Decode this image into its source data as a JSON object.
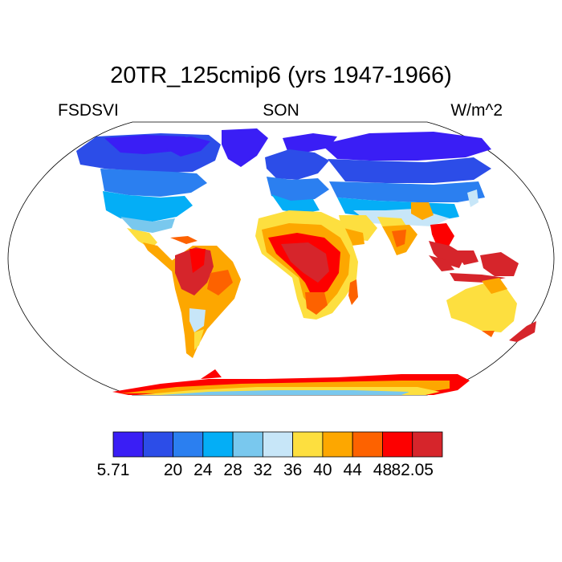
{
  "title": "20TR_125cmip6 (yrs 1947-1966)",
  "left_label": "FSDSVI",
  "center_label": "SON",
  "right_label": "W/m^2",
  "map": {
    "projection": "robinson",
    "background": "#ffffff",
    "land_colors": {
      "arctic": "#3a1ef5",
      "high": "#2c4de8",
      "midhigh": "#2b7ff0",
      "mid": "#04aef6",
      "midlow": "#79c8ee",
      "low": "#c7e6f8",
      "yellow": "#fddf3f",
      "orange": "#fda700",
      "darkorange": "#fd6200",
      "red": "#fd0000",
      "darkred": "#d6252b"
    }
  },
  "colorbar": {
    "colors": [
      "#3a1ef5",
      "#2c4de8",
      "#2b7ff0",
      "#04aef6",
      "#79c8ee",
      "#c7e6f8",
      "#fddf3f",
      "#fda700",
      "#fd6200",
      "#fd0000",
      "#d6252b"
    ],
    "labels": [
      "5.71",
      "20",
      "24",
      "28",
      "32",
      "36",
      "40",
      "44",
      "48",
      "82.05"
    ]
  }
}
